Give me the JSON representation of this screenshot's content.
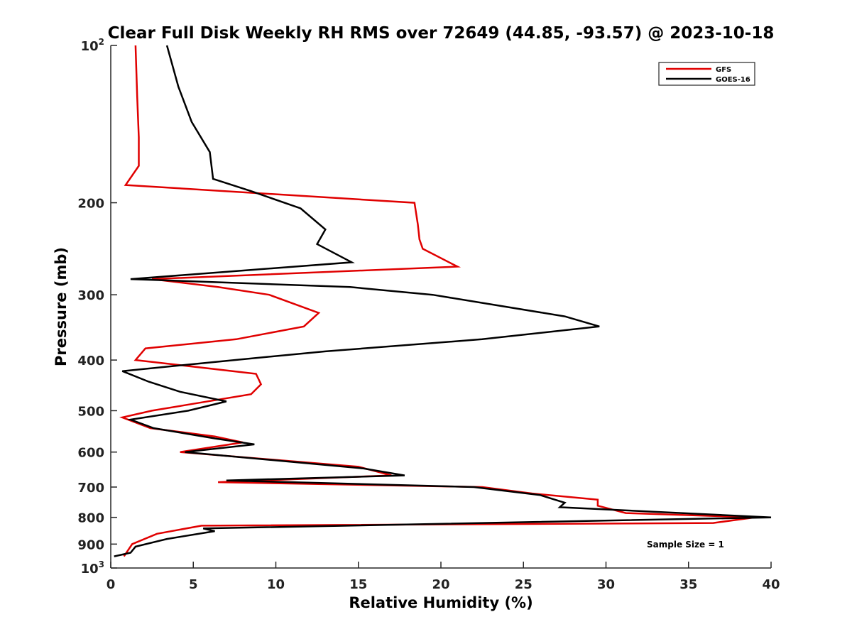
{
  "chart_data": {
    "type": "line",
    "title": "Clear Full Disk Weekly RH RMS over 72649 (44.85, -93.57) @ 2023-10-18",
    "xlabel": "Relative Humidity (%)",
    "ylabel": "Pressure (mb)",
    "xlim": [
      0,
      40
    ],
    "ylim": [
      100,
      1000
    ],
    "y_scale": "log",
    "y_reversed": true,
    "x_ticks": [
      "0",
      "5",
      "10",
      "15",
      "20",
      "25",
      "30",
      "35",
      "40"
    ],
    "y_ticks": [
      {
        "value": 100,
        "label": "10",
        "sup": "2"
      },
      {
        "value": 200,
        "label": "200",
        "sup": ""
      },
      {
        "value": 300,
        "label": "300",
        "sup": ""
      },
      {
        "value": 400,
        "label": "400",
        "sup": ""
      },
      {
        "value": 500,
        "label": "500",
        "sup": ""
      },
      {
        "value": 600,
        "label": "600",
        "sup": ""
      },
      {
        "value": 700,
        "label": "700",
        "sup": ""
      },
      {
        "value": 800,
        "label": "800",
        "sup": ""
      },
      {
        "value": 900,
        "label": "900",
        "sup": ""
      },
      {
        "value": 1000,
        "label": "10",
        "sup": "3"
      }
    ],
    "grid": false,
    "legend_position": "top-right",
    "annotation": "Sample Size = 1",
    "series": [
      {
        "name": "GFS",
        "color": "#e00000",
        "points": [
          [
            1.5,
            100
          ],
          [
            1.6,
            125
          ],
          [
            1.7,
            150
          ],
          [
            1.7,
            170
          ],
          [
            0.9,
            185
          ],
          [
            18.4,
            200
          ],
          [
            18.6,
            220
          ],
          [
            18.7,
            235
          ],
          [
            18.9,
            245
          ],
          [
            21.0,
            265
          ],
          [
            2.5,
            280
          ],
          [
            6.5,
            290
          ],
          [
            9.6,
            300
          ],
          [
            12.6,
            325
          ],
          [
            11.7,
            345
          ],
          [
            7.6,
            365
          ],
          [
            2.1,
            380
          ],
          [
            1.5,
            400
          ],
          [
            8.8,
            425
          ],
          [
            9.1,
            445
          ],
          [
            8.5,
            465
          ],
          [
            5.0,
            485
          ],
          [
            2.5,
            500
          ],
          [
            0.7,
            515
          ],
          [
            2.4,
            540
          ],
          [
            6.3,
            560
          ],
          [
            8.0,
            575
          ],
          [
            4.2,
            600
          ],
          [
            15.0,
            640
          ],
          [
            17.0,
            665
          ],
          [
            6.5,
            685
          ],
          [
            22.5,
            700
          ],
          [
            25.5,
            720
          ],
          [
            29.5,
            740
          ],
          [
            29.5,
            760
          ],
          [
            31.2,
            785
          ],
          [
            39.0,
            800
          ],
          [
            36.5,
            820
          ],
          [
            5.5,
            830
          ],
          [
            2.8,
            860
          ],
          [
            1.3,
            900
          ],
          [
            0.8,
            950
          ]
        ]
      },
      {
        "name": "GOES-16",
        "color": "#000000",
        "points": [
          [
            3.4,
            100
          ],
          [
            4.1,
            120
          ],
          [
            4.9,
            140
          ],
          [
            6.0,
            160
          ],
          [
            6.2,
            180
          ],
          [
            8.5,
            190
          ],
          [
            11.5,
            205
          ],
          [
            13.0,
            225
          ],
          [
            12.5,
            240
          ],
          [
            14.6,
            260
          ],
          [
            1.2,
            280
          ],
          [
            14.5,
            290
          ],
          [
            19.5,
            300
          ],
          [
            27.5,
            330
          ],
          [
            29.6,
            345
          ],
          [
            22.5,
            365
          ],
          [
            13.0,
            385
          ],
          [
            7.5,
            400
          ],
          [
            0.7,
            420
          ],
          [
            2.3,
            440
          ],
          [
            4.2,
            460
          ],
          [
            7.0,
            480
          ],
          [
            4.7,
            500
          ],
          [
            1.2,
            520
          ],
          [
            2.6,
            540
          ],
          [
            6.3,
            565
          ],
          [
            8.7,
            580
          ],
          [
            4.5,
            600
          ],
          [
            15.3,
            645
          ],
          [
            17.8,
            665
          ],
          [
            7.0,
            680
          ],
          [
            22.0,
            700
          ],
          [
            26.0,
            725
          ],
          [
            27.5,
            750
          ],
          [
            27.2,
            765
          ],
          [
            40.0,
            800
          ],
          [
            5.6,
            840
          ],
          [
            6.3,
            850
          ],
          [
            3.4,
            880
          ],
          [
            1.5,
            910
          ],
          [
            1.2,
            935
          ],
          [
            0.2,
            950
          ]
        ]
      }
    ]
  }
}
